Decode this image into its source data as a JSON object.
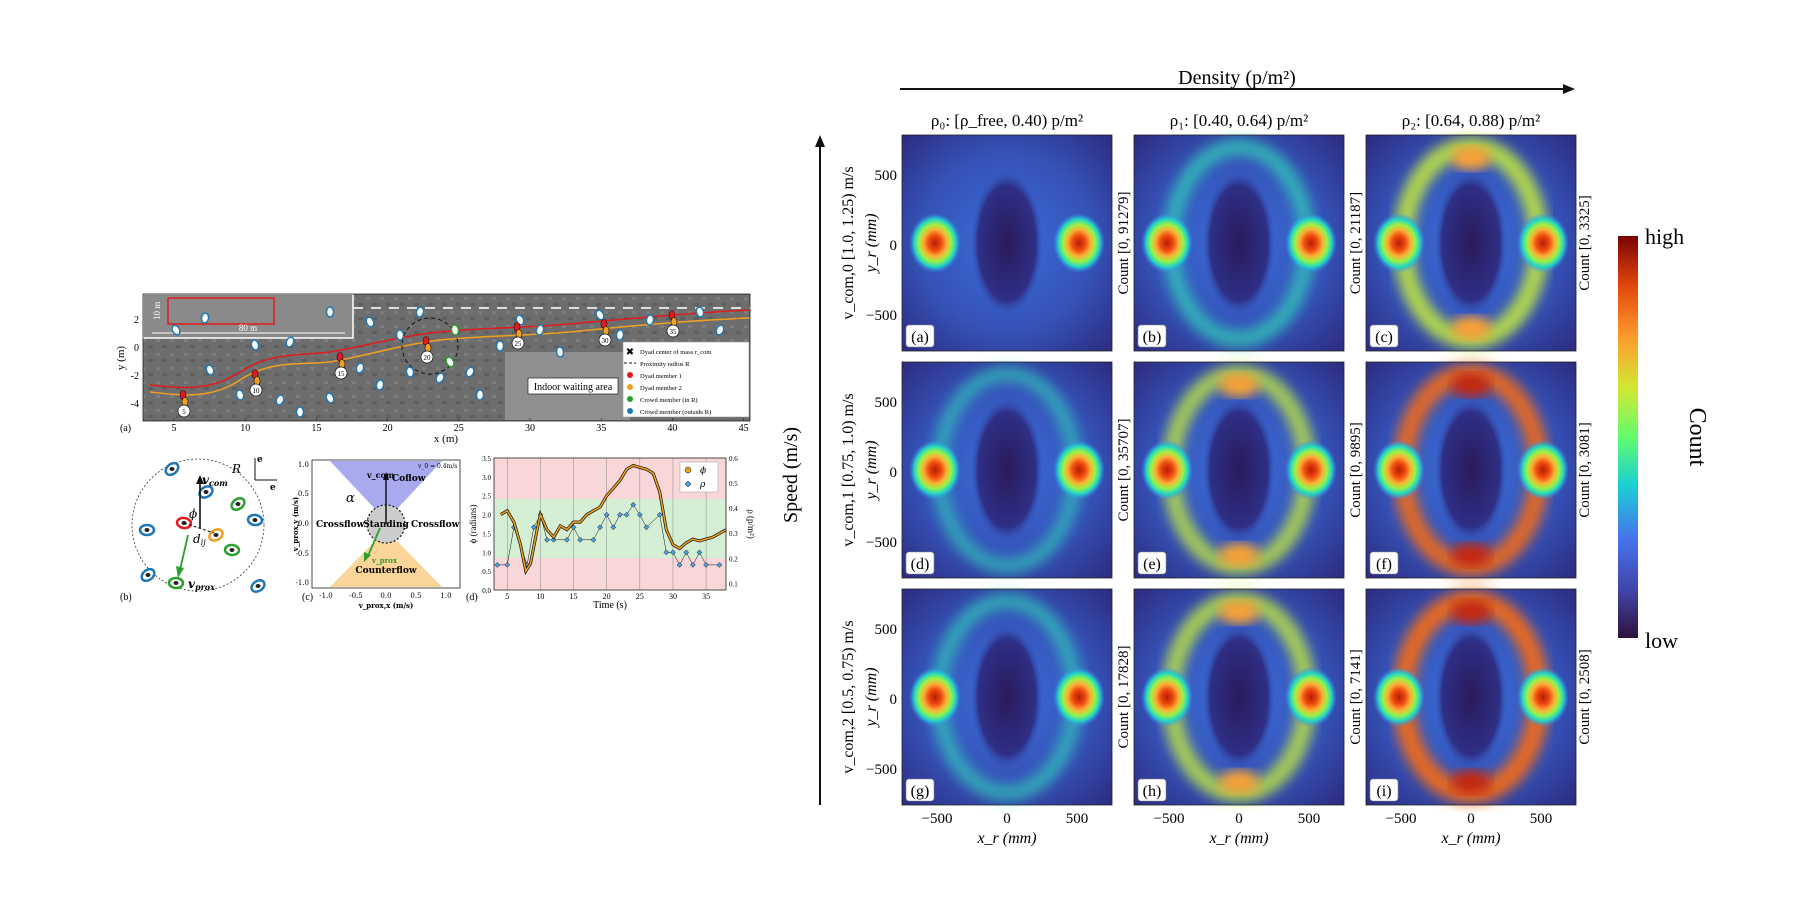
{
  "left": {
    "panel_a": {
      "label": "(a)",
      "xlabel": "x (m)",
      "ylabel": "y (m)",
      "xticks": [
        "5",
        "10",
        "15",
        "20",
        "25",
        "30",
        "35",
        "40",
        "45"
      ],
      "yticks": [
        "2",
        "0",
        "-2",
        "-4"
      ],
      "inset_10m": "10 m",
      "inset_80m": "80 m",
      "area_label": "Indoor waiting area",
      "tracker_ids": [
        "5",
        "10",
        "15",
        "20",
        "25",
        "30",
        "35"
      ],
      "legend": [
        {
          "label": "Dyad center of mass r_com",
          "color": "#000000"
        },
        {
          "label": "Proximity radius R",
          "color": "#000000"
        },
        {
          "label": "Dyad member 1",
          "color": "#e31a1c"
        },
        {
          "label": "Dyad member 2",
          "color": "#f0a020"
        },
        {
          "label": "Crowd member (in R)",
          "color": "#2ca02c"
        },
        {
          "label": "Crowd member (outside R)",
          "color": "#1f77b4"
        }
      ]
    },
    "panel_b": {
      "label": "(b)",
      "vcom": "v",
      "vcom_sub": "com",
      "R": "R",
      "phi": "ϕ",
      "dij": "d",
      "dij_sub": "ij",
      "vprox": "v",
      "vprox_sub": "prox",
      "e_par": "e",
      "e_perp": "e"
    },
    "panel_c": {
      "label": "(c)",
      "xlabel": "v_prox,x (m/s)",
      "ylabel": "v_prox,y (m/s)",
      "xticks": [
        "-1.0",
        "-0.5",
        "0.0",
        "0.5",
        "1.0"
      ],
      "yticks": [
        "1.0",
        "0.5",
        "0.0",
        "-0.5",
        "-1.0"
      ],
      "vcom": "v_com",
      "follow": "Coflow",
      "counterflow": "Counterflow",
      "crossflow_l": "Crossflow",
      "crossflow_r": "Crossflow",
      "standing": "Standing",
      "alpha": "α",
      "vprox": "v_prox",
      "legend": "v_0 = 0.4m/s"
    },
    "panel_d": {
      "label": "(d)",
      "xlabel": "Time (s)",
      "ylabel_left": "ϕ (radians)",
      "ylabel_right": "ρ (p/m²)",
      "xticks": [
        "5",
        "10",
        "15",
        "20",
        "25",
        "30",
        "35"
      ],
      "yticks_left": [
        "3.5",
        "3.0",
        "2.5",
        "2.0",
        "1.5",
        "1.0",
        "0.5",
        "0.0"
      ],
      "yticks_right": [
        "0.6",
        "0.5",
        "0.4",
        "0.3",
        "0.2",
        "0.1"
      ],
      "legend_phi": "ϕ",
      "legend_rho": "ρ"
    }
  },
  "right": {
    "top_axis_label": "Density (p/m²)",
    "side_axis_label": "Speed (m/s)",
    "col_titles": [
      "ρ₀: [ρ_free, 0.40) p/m²",
      "ρ₁: [0.40, 0.64) p/m²",
      "ρ₂: [0.64, 0.88) p/m²"
    ],
    "row_titles": [
      "v_com,0 [1.0, 1.25) m/s",
      "v_com,1 [0.75, 1.0) m/s",
      "v_com,2 [0.5, 0.75) m/s"
    ],
    "ylabel": "y_r (mm)",
    "xlabel": "x_r (mm)",
    "xticks": [
      "−500",
      "0",
      "500"
    ],
    "yticks": [
      "500",
      "0",
      "−500"
    ],
    "colorbar": {
      "high": "high",
      "low": "low",
      "label": "Count"
    },
    "panels": [
      {
        "label": "(a)",
        "count": "",
        "ring": 0.05
      },
      {
        "label": "(b)",
        "count": "Count [0, 91279]",
        "ring": 0.35
      },
      {
        "label": "(c)",
        "count": "Count [0, 21187]",
        "ring": 0.75
      },
      {
        "label": "(d)",
        "count": "",
        "ring": 0.12
      },
      {
        "label": "(e)",
        "count": "Count [0, 35707]",
        "ring": 0.55
      },
      {
        "label": "(f)",
        "count": "Count [0, 9895]",
        "ring": 0.85
      },
      {
        "label": "(g)",
        "count": "",
        "ring": 0.2
      },
      {
        "label": "(h)",
        "count": "Count [0, 17828]",
        "ring": 0.6
      },
      {
        "label": "(i)",
        "count": "Count [0, 7141]",
        "ring": 0.95
      }
    ],
    "extra_counts": [
      "Count [0, 3325]",
      "Count [0, 3081]",
      "Count [0, 2508]"
    ]
  }
}
